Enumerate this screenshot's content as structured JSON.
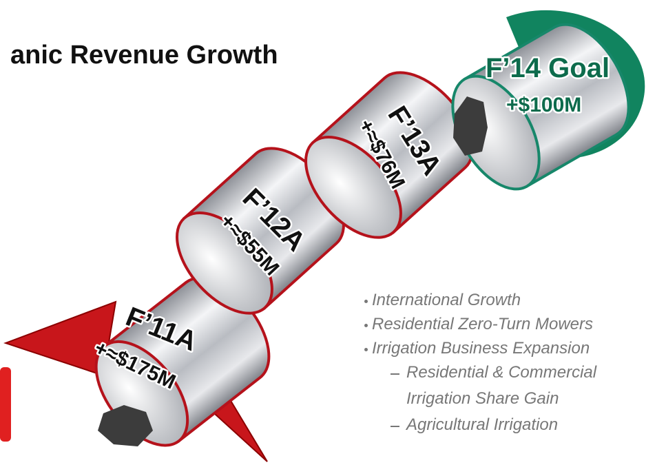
{
  "title": "anic Revenue Growth",
  "segments": [
    {
      "label": "F’11A",
      "value": "+≈$175M"
    },
    {
      "label": "F’12A",
      "value": "+≈$55M"
    },
    {
      "label": "F’13A",
      "value": "+≈$76M"
    },
    {
      "label": "F’14 Goal",
      "value": "+$100M"
    }
  ],
  "bullets": [
    {
      "text": "International Growth"
    },
    {
      "text": "Residential Zero-Turn Mowers"
    },
    {
      "text": "Irrigation Business Expansion",
      "sub": [
        "Residential & Commercial Irrigation Share Gain",
        "Agricultural Irrigation"
      ]
    }
  ]
}
